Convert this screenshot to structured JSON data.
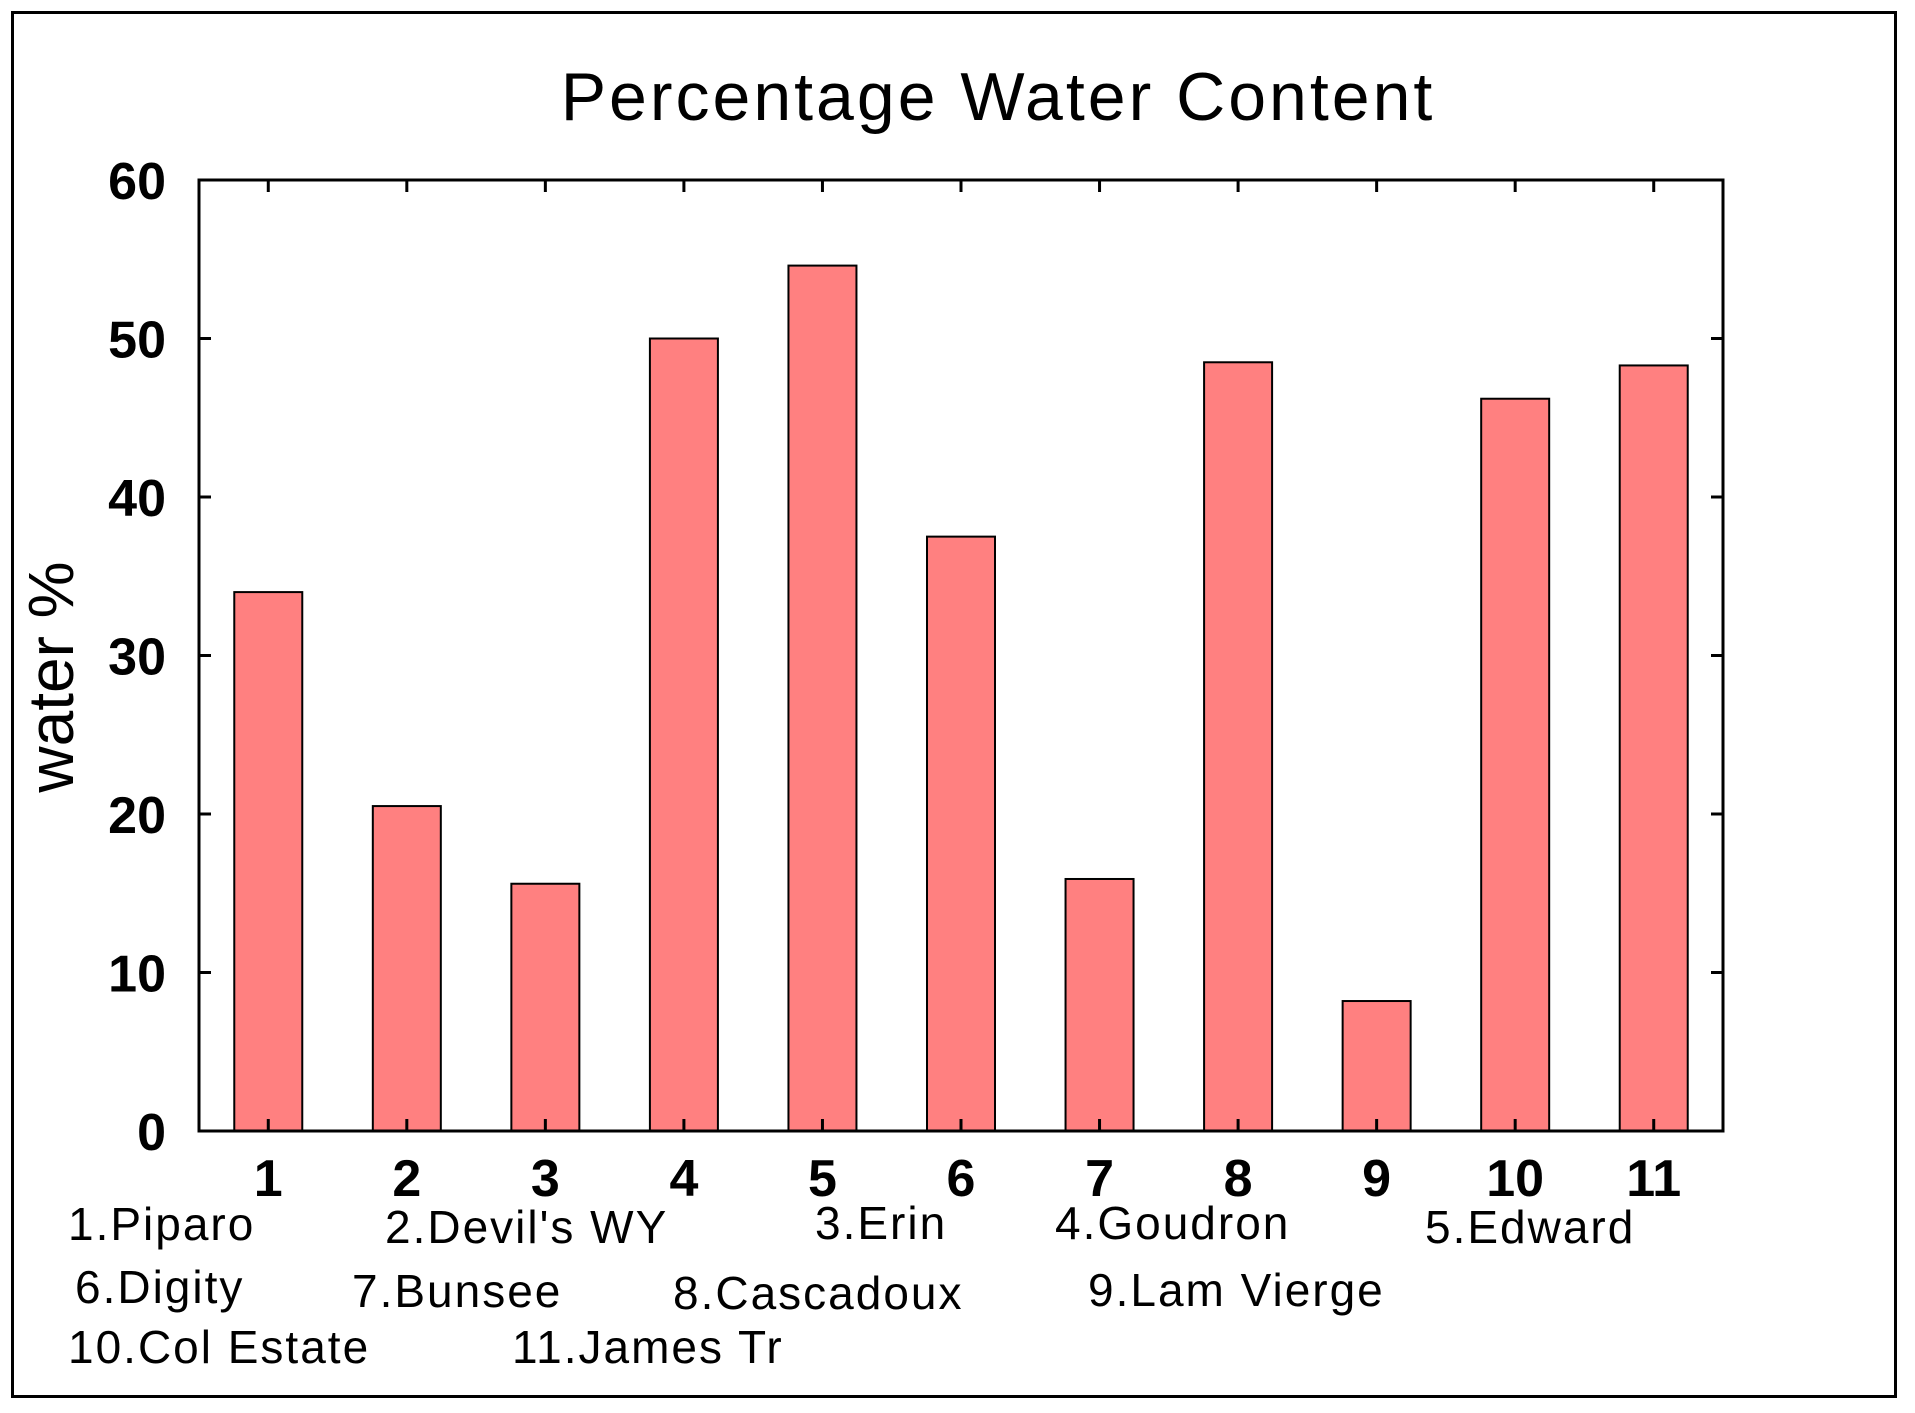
{
  "chart_data": {
    "type": "bar",
    "title": "Percentage Water Content",
    "xlabel": "",
    "ylabel": "water %",
    "ylim": [
      0,
      60
    ],
    "yticks": [
      0,
      10,
      20,
      30,
      40,
      50,
      60
    ],
    "categories": [
      "1",
      "2",
      "3",
      "4",
      "5",
      "6",
      "7",
      "8",
      "9",
      "10",
      "11"
    ],
    "values": [
      34.0,
      20.5,
      15.6,
      50.0,
      54.6,
      37.5,
      15.9,
      48.5,
      8.2,
      46.2,
      48.3
    ],
    "bar_color": "#ff8080",
    "legend": [
      "1.Piparo",
      "2.Devil's WY",
      "3.Erin",
      "4.Goudron",
      "5.Edward",
      "6.Digity",
      "7.Bunsee",
      "8.Cascadoux",
      "9.Lam Vierge",
      "10.Col Estate",
      "11.James Tr"
    ]
  }
}
